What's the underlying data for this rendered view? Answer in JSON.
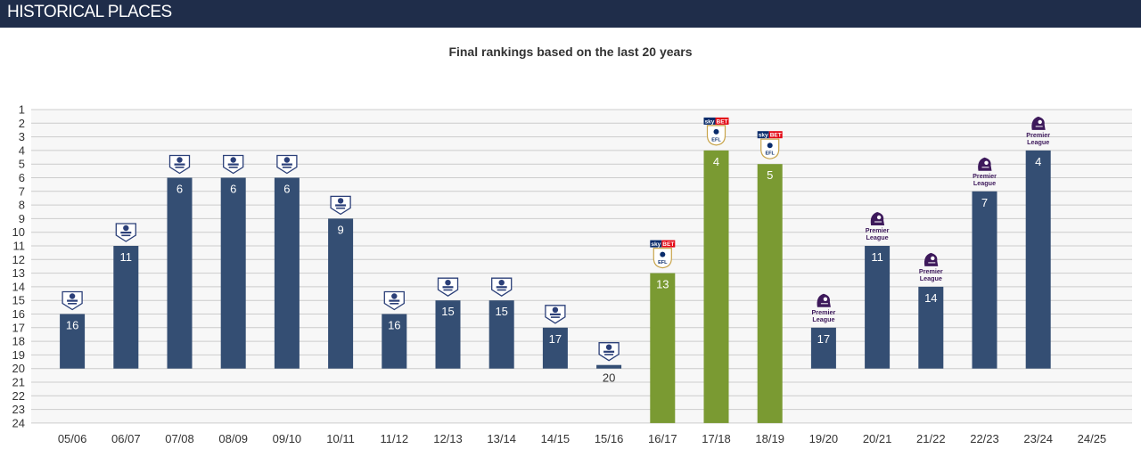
{
  "header": {
    "title": "HISTORICAL PLACES"
  },
  "colors": {
    "header_bg": "#1f2d4a",
    "premier_league_bar": "#344e73",
    "championship_bar": "#7a9a32",
    "grid": "#cccccc",
    "plot_bg": "#f7f7f7",
    "pl_logo_old": "#2b3f78",
    "pl_logo_new": "#3d195b",
    "efl_red": "#e30613",
    "efl_blue": "#0a2c6b",
    "efl_gold": "#c8a44a"
  },
  "chart_data": {
    "type": "bar",
    "title": "Final rankings based on the last 20 years",
    "xlabel": "",
    "ylabel": "",
    "ylim": [
      1,
      24
    ],
    "y_ticks": [
      1,
      2,
      3,
      4,
      5,
      6,
      7,
      8,
      9,
      10,
      11,
      12,
      13,
      14,
      15,
      16,
      17,
      18,
      19,
      20,
      21,
      22,
      23,
      24
    ],
    "y_inverted": true,
    "grid": true,
    "categories": [
      "05/06",
      "06/07",
      "07/08",
      "08/09",
      "09/10",
      "10/11",
      "11/12",
      "12/13",
      "13/14",
      "14/15",
      "15/16",
      "16/17",
      "17/18",
      "18/19",
      "19/20",
      "20/21",
      "21/22",
      "22/23",
      "23/24",
      "24/25"
    ],
    "values": [
      16,
      11,
      6,
      6,
      6,
      9,
      16,
      15,
      15,
      17,
      20,
      13,
      4,
      5,
      17,
      11,
      14,
      7,
      4,
      null
    ],
    "division": [
      "premier-league-old",
      "premier-league-old",
      "premier-league-old",
      "premier-league-old",
      "premier-league-old",
      "premier-league-old",
      "premier-league-old",
      "premier-league-old",
      "premier-league-old",
      "premier-league-old",
      "premier-league-old",
      "championship",
      "championship",
      "championship",
      "premier-league",
      "premier-league",
      "premier-league",
      "premier-league",
      "premier-league",
      null
    ],
    "logo_texts": {
      "premier_league_line1": "Premier",
      "premier_league_line2": "League",
      "efl_sponsor_sky": "sky",
      "efl_sponsor_bet": "BET",
      "efl_mark": "EFL"
    }
  }
}
